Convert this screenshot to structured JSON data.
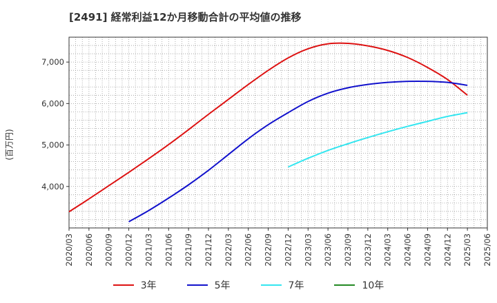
{
  "chart_data": {
    "type": "line",
    "title": "[2491]  経常利益12か月移動合計の平均値の推移",
    "ylabel": "(百万円)",
    "xlabel": "",
    "x_ticks": [
      "2020/03",
      "2020/06",
      "2020/09",
      "2020/12",
      "2021/03",
      "2021/06",
      "2021/09",
      "2021/12",
      "2022/03",
      "2022/06",
      "2022/09",
      "2022/12",
      "2023/03",
      "2023/06",
      "2023/09",
      "2023/12",
      "2024/03",
      "2024/06",
      "2024/09",
      "2024/12",
      "2025/03",
      "2025/06"
    ],
    "ylim": [
      3000,
      7600
    ],
    "y_ticks": [
      4000,
      5000,
      6000,
      7000
    ],
    "y_tick_labels": [
      "4,000",
      "5,000",
      "6,000",
      "7,000"
    ],
    "grid": true,
    "legend_position": "bottom",
    "series": [
      {
        "name": "3年",
        "color": "#dd1111",
        "x": [
          "2020/03",
          "2020/06",
          "2020/09",
          "2020/12",
          "2021/03",
          "2021/06",
          "2021/09",
          "2021/12",
          "2022/03",
          "2022/06",
          "2022/09",
          "2022/12",
          "2023/03",
          "2023/06",
          "2023/09",
          "2023/12",
          "2024/03",
          "2024/06",
          "2024/09",
          "2024/12",
          "2025/03"
        ],
        "values": [
          3390,
          3700,
          4020,
          4340,
          4670,
          5010,
          5370,
          5740,
          6100,
          6460,
          6800,
          7100,
          7320,
          7440,
          7450,
          7390,
          7280,
          7110,
          6870,
          6580,
          6200
        ]
      },
      {
        "name": "5年",
        "color": "#1111cc",
        "x": [
          "2020/12",
          "2021/03",
          "2021/06",
          "2021/09",
          "2021/12",
          "2022/03",
          "2022/06",
          "2022/09",
          "2022/12",
          "2023/03",
          "2023/06",
          "2023/09",
          "2023/12",
          "2024/03",
          "2024/06",
          "2024/09",
          "2024/12",
          "2025/03"
        ],
        "values": [
          3150,
          3420,
          3720,
          4040,
          4390,
          4770,
          5150,
          5490,
          5780,
          6050,
          6250,
          6380,
          6460,
          6510,
          6535,
          6535,
          6510,
          6440
        ]
      },
      {
        "name": "7年",
        "color": "#33e6f0",
        "x": [
          "2022/12",
          "2023/03",
          "2023/06",
          "2023/09",
          "2023/12",
          "2024/03",
          "2024/06",
          "2024/09",
          "2024/12",
          "2025/03"
        ],
        "values": [
          4470,
          4680,
          4870,
          5030,
          5180,
          5320,
          5450,
          5570,
          5690,
          5780
        ]
      },
      {
        "name": "10年",
        "color": "#228822",
        "x": [],
        "values": []
      }
    ]
  }
}
